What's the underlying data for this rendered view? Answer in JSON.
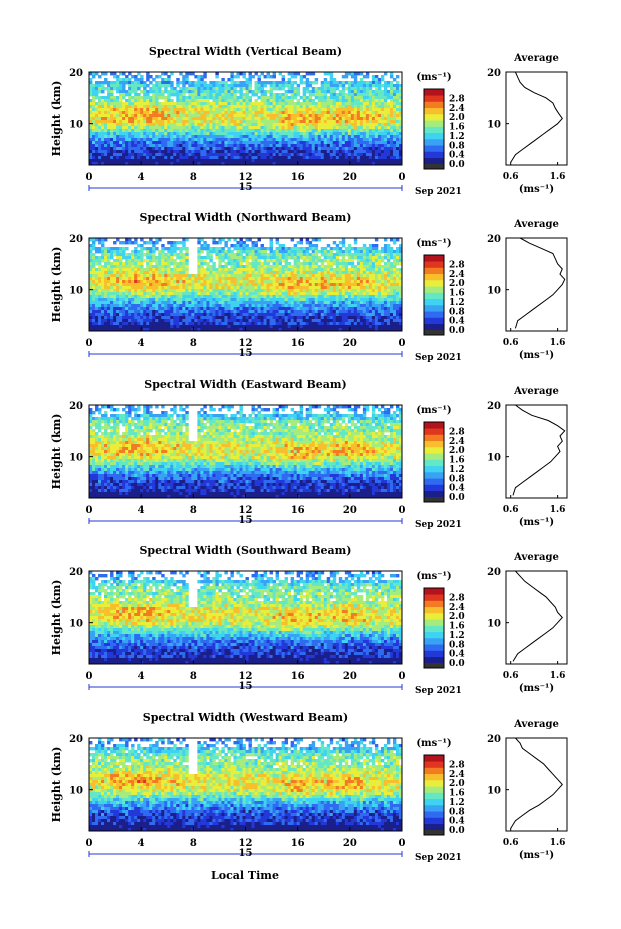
{
  "figure": {
    "ylabel": "Height (km)",
    "xlabel": "Local Time",
    "date_label": "Sep 2021",
    "day_label": "15",
    "colorbar_unit": "(ms⁻¹)",
    "avg_title": "Average",
    "avg_xlabel": "(ms⁻¹)"
  },
  "colors": {
    "colormap": [
      "#1b1f8a",
      "#2338d8",
      "#2f6bf0",
      "#38a3f5",
      "#3fd3f2",
      "#63e7c5",
      "#a5ec7c",
      "#e9ee3a",
      "#f8bf2c",
      "#f37b22",
      "#e0361d",
      "#b3131d"
    ]
  },
  "chart_data": [
    {
      "type": "heatmap",
      "title": "Spectral Width (Vertical Beam)",
      "x_ticks": [
        "0",
        "4",
        "8",
        "12",
        "16",
        "20",
        "0"
      ],
      "xlim": [
        0,
        24
      ],
      "y_ticks": [
        "20",
        "10"
      ],
      "ylim": [
        2,
        20
      ],
      "colorbar_ticks": [
        "2.8",
        "2.4",
        "2.0",
        "1.6",
        "1.2",
        "0.8",
        "0.4",
        "0.0"
      ],
      "colorbar_range": [
        0,
        3.2
      ],
      "average": {
        "x_ticks": [
          "0.6",
          "1.6"
        ],
        "xlim": [
          0.5,
          1.8
        ],
        "height_km": [
          2.5,
          4,
          5,
          6,
          7,
          8,
          9,
          10,
          11,
          12,
          13,
          14,
          15,
          16,
          17,
          18,
          19,
          20
        ],
        "mean_width": [
          0.6,
          0.7,
          0.85,
          1.0,
          1.15,
          1.3,
          1.45,
          1.6,
          1.7,
          1.62,
          1.55,
          1.5,
          1.35,
          1.1,
          0.9,
          0.8,
          0.75,
          0.7
        ]
      }
    },
    {
      "type": "heatmap",
      "title": "Spectral Width (Northward Beam)",
      "x_ticks": [
        "0",
        "4",
        "8",
        "12",
        "16",
        "20",
        "0"
      ],
      "xlim": [
        0,
        24
      ],
      "y_ticks": [
        "20",
        "10"
      ],
      "ylim": [
        2,
        20
      ],
      "colorbar_ticks": [
        "2.8",
        "2.4",
        "2.0",
        "1.6",
        "1.2",
        "0.8",
        "0.4",
        "0.0"
      ],
      "colorbar_range": [
        0,
        3.2
      ],
      "average": {
        "x_ticks": [
          "0.6",
          "1.6"
        ],
        "xlim": [
          0.5,
          1.8
        ],
        "height_km": [
          2.5,
          4,
          5,
          6,
          7,
          8,
          9,
          10,
          11,
          12,
          13,
          14,
          15,
          16,
          17,
          18,
          19,
          20
        ],
        "mean_width": [
          0.7,
          0.75,
          0.9,
          1.05,
          1.2,
          1.35,
          1.5,
          1.6,
          1.7,
          1.75,
          1.65,
          1.7,
          1.6,
          1.55,
          1.5,
          1.25,
          1.0,
          0.8
        ]
      }
    },
    {
      "type": "heatmap",
      "title": "Spectral Width (Eastward Beam)",
      "x_ticks": [
        "0",
        "4",
        "8",
        "12",
        "16",
        "20",
        "0"
      ],
      "xlim": [
        0,
        24
      ],
      "y_ticks": [
        "20",
        "10"
      ],
      "ylim": [
        2,
        20
      ],
      "colorbar_ticks": [
        "2.8",
        "2.4",
        "2.0",
        "1.6",
        "1.2",
        "0.8",
        "0.4",
        "0.0"
      ],
      "colorbar_range": [
        0,
        3.2
      ],
      "average": {
        "x_ticks": [
          "0.6",
          "1.6"
        ],
        "xlim": [
          0.5,
          1.8
        ],
        "height_km": [
          2.5,
          4,
          5,
          6,
          7,
          8,
          9,
          10,
          11,
          12,
          13,
          14,
          15,
          16,
          17,
          18,
          19,
          20
        ],
        "mean_width": [
          0.65,
          0.7,
          0.85,
          1.0,
          1.15,
          1.3,
          1.45,
          1.55,
          1.65,
          1.6,
          1.7,
          1.65,
          1.75,
          1.6,
          1.4,
          1.05,
          0.85,
          0.7
        ]
      }
    },
    {
      "type": "heatmap",
      "title": "Spectral Width (Southward Beam)",
      "x_ticks": [
        "0",
        "4",
        "8",
        "12",
        "16",
        "20",
        "0"
      ],
      "xlim": [
        0,
        24
      ],
      "y_ticks": [
        "20",
        "10"
      ],
      "ylim": [
        2,
        20
      ],
      "colorbar_ticks": [
        "2.8",
        "2.4",
        "2.0",
        "1.6",
        "1.2",
        "0.8",
        "0.4",
        "0.0"
      ],
      "colorbar_range": [
        0,
        3.2
      ],
      "average": {
        "x_ticks": [
          "0.6",
          "1.6"
        ],
        "xlim": [
          0.5,
          1.8
        ],
        "height_km": [
          2.5,
          4,
          5,
          6,
          7,
          8,
          9,
          10,
          11,
          12,
          13,
          14,
          15,
          16,
          17,
          18,
          19,
          20
        ],
        "mean_width": [
          0.65,
          0.75,
          0.9,
          1.05,
          1.2,
          1.35,
          1.5,
          1.6,
          1.7,
          1.6,
          1.55,
          1.45,
          1.35,
          1.2,
          1.05,
          0.9,
          0.8,
          0.7
        ]
      }
    },
    {
      "type": "heatmap",
      "title": "Spectral Width (Westward Beam)",
      "x_ticks": [
        "0",
        "4",
        "8",
        "12",
        "16",
        "20",
        "0"
      ],
      "xlim": [
        0,
        24
      ],
      "y_ticks": [
        "20",
        "10"
      ],
      "ylim": [
        2,
        20
      ],
      "colorbar_ticks": [
        "2.8",
        "2.4",
        "2.0",
        "1.6",
        "1.2",
        "0.8",
        "0.4",
        "0.0"
      ],
      "colorbar_range": [
        0,
        3.2
      ],
      "average": {
        "x_ticks": [
          "0.6",
          "1.6"
        ],
        "xlim": [
          0.5,
          1.8
        ],
        "height_km": [
          2.5,
          4,
          5,
          6,
          7,
          8,
          9,
          10,
          11,
          12,
          13,
          14,
          15,
          16,
          17,
          18,
          19,
          20
        ],
        "mean_width": [
          0.6,
          0.7,
          0.85,
          1.0,
          1.2,
          1.35,
          1.5,
          1.6,
          1.7,
          1.6,
          1.5,
          1.4,
          1.3,
          1.15,
          1.0,
          0.85,
          0.8,
          0.7
        ]
      }
    }
  ]
}
